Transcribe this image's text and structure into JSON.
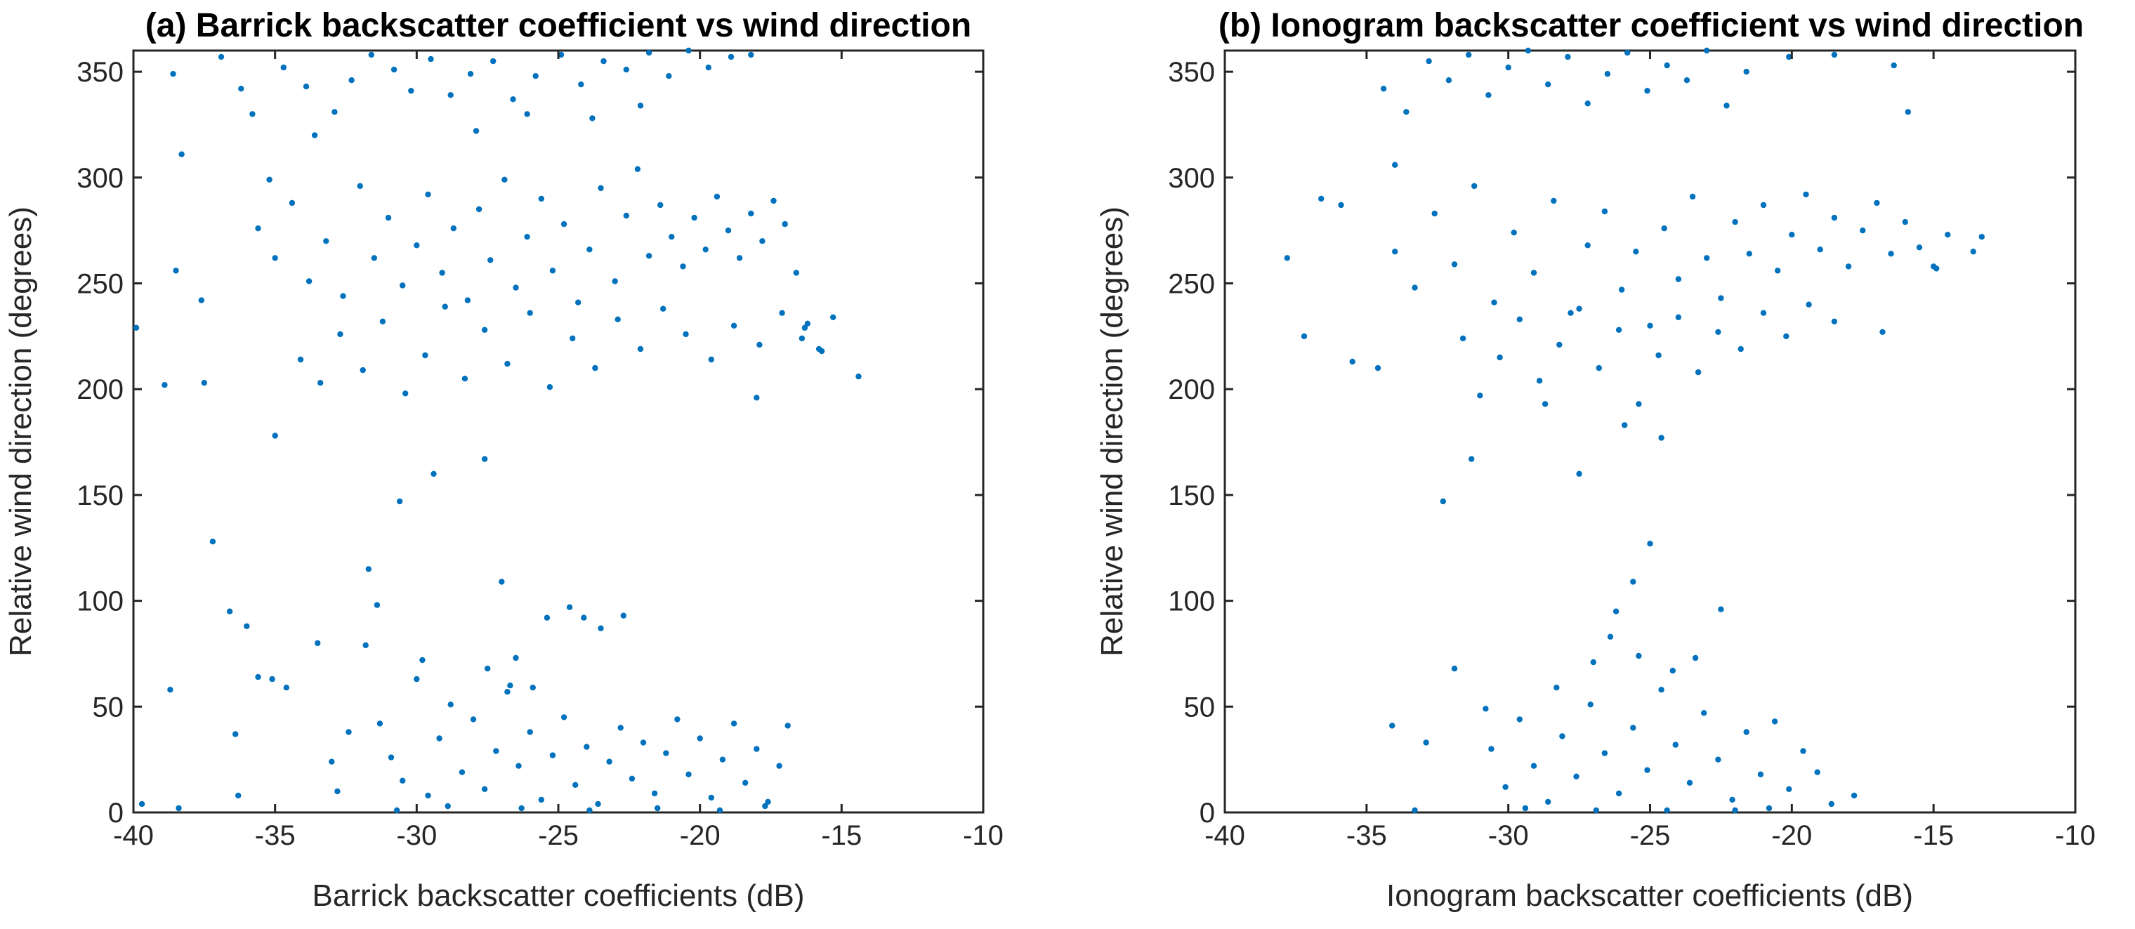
{
  "colors": {
    "marker": "#0072BD",
    "axis": "#262626",
    "text": "#000000"
  },
  "chart_data": [
    {
      "type": "scatter",
      "title": "(a) Barrick backscatter coefficient vs wind direction",
      "xlabel": "Barrick backscatter coefficients (dB)",
      "ylabel": "Relative wind direction (degrees)",
      "xlim": [
        -40,
        -10
      ],
      "ylim": [
        0,
        360
      ],
      "xticks": [
        -40,
        -35,
        -30,
        -25,
        -20,
        -15,
        -10
      ],
      "yticks": [
        0,
        50,
        100,
        150,
        200,
        250,
        300,
        350
      ],
      "xtick_labels": [
        "-40",
        "-35",
        "-30",
        "-25",
        "-20",
        "-15",
        "-10"
      ],
      "ytick_labels": [
        "0",
        "50",
        "100",
        "150",
        "200",
        "250",
        "300",
        "350"
      ],
      "points": [
        [
          -39.9,
          229
        ],
        [
          -38.9,
          202
        ],
        [
          -38.5,
          256
        ],
        [
          -38.3,
          311
        ],
        [
          -38.6,
          349
        ],
        [
          -37.5,
          203
        ],
        [
          -37.2,
          128
        ],
        [
          -37.6,
          242
        ],
        [
          -36.6,
          95
        ],
        [
          -36.4,
          37
        ],
        [
          -36.3,
          8
        ],
        [
          -36.0,
          88
        ],
        [
          -35.6,
          64
        ],
        [
          -35.1,
          63
        ],
        [
          -35.0,
          178
        ],
        [
          -34.6,
          59
        ],
        [
          -33.5,
          80
        ],
        [
          -33.0,
          24
        ],
        [
          -32.8,
          10
        ],
        [
          -32.4,
          38
        ],
        [
          -31.7,
          115
        ],
        [
          -31.4,
          98
        ],
        [
          -30.6,
          147
        ],
        [
          -29.4,
          160
        ],
        [
          -27.6,
          167
        ],
        [
          -27.0,
          109
        ],
        [
          -26.5,
          73
        ],
        [
          -25.4,
          92
        ],
        [
          -24.6,
          97
        ],
        [
          -24.1,
          92
        ],
        [
          -23.5,
          87
        ],
        [
          -22.7,
          93
        ],
        [
          -18.0,
          196
        ],
        [
          -15.3,
          234
        ],
        [
          -14.4,
          206
        ],
        [
          -15.8,
          219
        ],
        [
          -16.3,
          229
        ],
        [
          -39.7,
          4
        ],
        [
          -38.7,
          58
        ],
        [
          -38.4,
          2
        ],
        [
          -36.9,
          357
        ],
        [
          -36.2,
          342
        ],
        [
          -35.8,
          330
        ],
        [
          -35.2,
          299
        ],
        [
          -34.7,
          352
        ],
        [
          -33.9,
          343
        ],
        [
          -33.6,
          320
        ],
        [
          -32.9,
          331
        ],
        [
          -32.3,
          346
        ],
        [
          -31.6,
          358
        ],
        [
          -30.8,
          351
        ],
        [
          -30.2,
          341
        ],
        [
          -29.5,
          356
        ],
        [
          -28.8,
          339
        ],
        [
          -28.1,
          349
        ],
        [
          -27.3,
          355
        ],
        [
          -26.6,
          337
        ],
        [
          -25.8,
          348
        ],
        [
          -24.9,
          358
        ],
        [
          -24.2,
          344
        ],
        [
          -23.4,
          355
        ],
        [
          -22.6,
          351
        ],
        [
          -21.8,
          359
        ],
        [
          -21.1,
          348
        ],
        [
          -20.4,
          360
        ],
        [
          -19.7,
          352
        ],
        [
          -18.9,
          357
        ],
        [
          -18.2,
          358
        ],
        [
          -27.9,
          322
        ],
        [
          -26.1,
          330
        ],
        [
          -23.8,
          328
        ],
        [
          -22.1,
          334
        ],
        [
          -35.6,
          276
        ],
        [
          -35.0,
          262
        ],
        [
          -34.4,
          288
        ],
        [
          -33.8,
          251
        ],
        [
          -33.2,
          270
        ],
        [
          -32.6,
          244
        ],
        [
          -32.0,
          296
        ],
        [
          -31.5,
          262
        ],
        [
          -31.0,
          281
        ],
        [
          -30.5,
          249
        ],
        [
          -30.0,
          268
        ],
        [
          -29.6,
          292
        ],
        [
          -29.1,
          255
        ],
        [
          -28.7,
          276
        ],
        [
          -28.2,
          242
        ],
        [
          -27.8,
          285
        ],
        [
          -27.4,
          261
        ],
        [
          -26.9,
          299
        ],
        [
          -26.5,
          248
        ],
        [
          -26.1,
          272
        ],
        [
          -25.6,
          290
        ],
        [
          -25.2,
          256
        ],
        [
          -24.8,
          278
        ],
        [
          -24.3,
          241
        ],
        [
          -23.9,
          266
        ],
        [
          -23.5,
          295
        ],
        [
          -23.0,
          251
        ],
        [
          -22.6,
          282
        ],
        [
          -22.2,
          304
        ],
        [
          -21.8,
          263
        ],
        [
          -21.4,
          287
        ],
        [
          -21.0,
          272
        ],
        [
          -20.6,
          258
        ],
        [
          -20.2,
          281
        ],
        [
          -19.8,
          266
        ],
        [
          -19.4,
          291
        ],
        [
          -19.0,
          275
        ],
        [
          -18.6,
          262
        ],
        [
          -18.2,
          283
        ],
        [
          -17.8,
          270
        ],
        [
          -17.4,
          289
        ],
        [
          -17.0,
          278
        ],
        [
          -16.6,
          255
        ],
        [
          -16.2,
          231
        ],
        [
          -34.1,
          214
        ],
        [
          -33.4,
          203
        ],
        [
          -32.7,
          226
        ],
        [
          -31.9,
          209
        ],
        [
          -31.2,
          232
        ],
        [
          -30.4,
          198
        ],
        [
          -29.7,
          216
        ],
        [
          -29.0,
          239
        ],
        [
          -28.3,
          205
        ],
        [
          -27.6,
          228
        ],
        [
          -26.8,
          212
        ],
        [
          -26.0,
          236
        ],
        [
          -25.3,
          201
        ],
        [
          -24.5,
          224
        ],
        [
          -23.7,
          210
        ],
        [
          -22.9,
          233
        ],
        [
          -22.1,
          219
        ],
        [
          -21.3,
          238
        ],
        [
          -20.5,
          226
        ],
        [
          -19.6,
          214
        ],
        [
          -18.8,
          230
        ],
        [
          -17.9,
          221
        ],
        [
          -17.1,
          236
        ],
        [
          -16.4,
          224
        ],
        [
          -15.7,
          218
        ],
        [
          -31.3,
          42
        ],
        [
          -30.9,
          26
        ],
        [
          -30.5,
          15
        ],
        [
          -30.0,
          63
        ],
        [
          -29.6,
          8
        ],
        [
          -29.2,
          35
        ],
        [
          -28.8,
          51
        ],
        [
          -28.4,
          19
        ],
        [
          -28.0,
          44
        ],
        [
          -27.6,
          11
        ],
        [
          -27.2,
          29
        ],
        [
          -26.8,
          57
        ],
        [
          -26.4,
          22
        ],
        [
          -26.0,
          38
        ],
        [
          -25.6,
          6
        ],
        [
          -25.2,
          27
        ],
        [
          -24.8,
          45
        ],
        [
          -24.4,
          13
        ],
        [
          -24.0,
          31
        ],
        [
          -23.6,
          4
        ],
        [
          -23.2,
          24
        ],
        [
          -22.8,
          40
        ],
        [
          -22.4,
          16
        ],
        [
          -22.0,
          33
        ],
        [
          -21.6,
          9
        ],
        [
          -21.2,
          28
        ],
        [
          -20.8,
          44
        ],
        [
          -20.4,
          18
        ],
        [
          -20.0,
          35
        ],
        [
          -19.6,
          7
        ],
        [
          -19.2,
          25
        ],
        [
          -18.8,
          42
        ],
        [
          -18.4,
          14
        ],
        [
          -18.0,
          30
        ],
        [
          -17.6,
          5
        ],
        [
          -17.2,
          22
        ],
        [
          -16.9,
          41
        ],
        [
          -30.7,
          1
        ],
        [
          -28.9,
          3
        ],
        [
          -26.3,
          2
        ],
        [
          -23.9,
          1
        ],
        [
          -21.5,
          2
        ],
        [
          -19.3,
          1
        ],
        [
          -17.7,
          3
        ],
        [
          -27.5,
          68
        ],
        [
          -26.7,
          60
        ],
        [
          -25.9,
          59
        ],
        [
          -29.8,
          72
        ],
        [
          -31.8,
          79
        ]
      ]
    },
    {
      "type": "scatter",
      "title": "(b) Ionogram backscatter coefficient vs wind direction",
      "xlabel": "Ionogram backscatter coefficients (dB)",
      "ylabel": "Relative wind direction (degrees)",
      "xlim": [
        -40,
        -10
      ],
      "ylim": [
        0,
        360
      ],
      "xticks": [
        -40,
        -35,
        -30,
        -25,
        -20,
        -15,
        -10
      ],
      "yticks": [
        0,
        50,
        100,
        150,
        200,
        250,
        300,
        350
      ],
      "xtick_labels": [
        "-40",
        "-35",
        "-30",
        "-25",
        "-20",
        "-15",
        "-10"
      ],
      "ytick_labels": [
        "0",
        "50",
        "100",
        "150",
        "200",
        "250",
        "300",
        "350"
      ],
      "points": [
        [
          -37.8,
          262
        ],
        [
          -37.2,
          225
        ],
        [
          -36.6,
          290
        ],
        [
          -35.9,
          287
        ],
        [
          -35.5,
          213
        ],
        [
          -34.6,
          210
        ],
        [
          -34.0,
          306
        ],
        [
          -32.3,
          147
        ],
        [
          -31.3,
          167
        ],
        [
          -27.5,
          160
        ],
        [
          -25.0,
          127
        ],
        [
          -25.6,
          109
        ],
        [
          -26.2,
          95
        ],
        [
          -22.5,
          96
        ],
        [
          -16.8,
          227
        ],
        [
          -13.6,
          265
        ],
        [
          -13.3,
          272
        ],
        [
          -14.9,
          257
        ],
        [
          -32.9,
          33
        ],
        [
          -34.1,
          41
        ],
        [
          -33.3,
          1
        ],
        [
          -31.9,
          68
        ],
        [
          -17.8,
          8
        ],
        [
          -22.0,
          1
        ],
        [
          -34.4,
          342
        ],
        [
          -33.6,
          331
        ],
        [
          -32.8,
          355
        ],
        [
          -32.1,
          346
        ],
        [
          -31.4,
          358
        ],
        [
          -30.7,
          339
        ],
        [
          -30.0,
          352
        ],
        [
          -29.3,
          360
        ],
        [
          -28.6,
          344
        ],
        [
          -27.9,
          357
        ],
        [
          -27.2,
          335
        ],
        [
          -26.5,
          349
        ],
        [
          -25.8,
          359
        ],
        [
          -25.1,
          341
        ],
        [
          -24.4,
          353
        ],
        [
          -23.7,
          346
        ],
        [
          -23.0,
          360
        ],
        [
          -22.3,
          334
        ],
        [
          -21.6,
          350
        ],
        [
          -20.1,
          357
        ],
        [
          -18.5,
          358
        ],
        [
          -16.4,
          353
        ],
        [
          -15.9,
          331
        ],
        [
          -34.0,
          265
        ],
        [
          -33.3,
          248
        ],
        [
          -32.6,
          283
        ],
        [
          -31.9,
          259
        ],
        [
          -31.2,
          296
        ],
        [
          -30.5,
          241
        ],
        [
          -29.8,
          274
        ],
        [
          -29.1,
          255
        ],
        [
          -28.4,
          289
        ],
        [
          -27.8,
          236
        ],
        [
          -27.2,
          268
        ],
        [
          -26.6,
          284
        ],
        [
          -26.0,
          247
        ],
        [
          -25.5,
          265
        ],
        [
          -25.0,
          230
        ],
        [
          -24.5,
          276
        ],
        [
          -24.0,
          252
        ],
        [
          -23.5,
          291
        ],
        [
          -23.0,
          262
        ],
        [
          -22.5,
          243
        ],
        [
          -22.0,
          279
        ],
        [
          -21.5,
          264
        ],
        [
          -21.0,
          287
        ],
        [
          -20.5,
          256
        ],
        [
          -20.0,
          273
        ],
        [
          -19.5,
          292
        ],
        [
          -19.0,
          266
        ],
        [
          -18.5,
          281
        ],
        [
          -18.0,
          258
        ],
        [
          -17.5,
          275
        ],
        [
          -17.0,
          288
        ],
        [
          -16.5,
          264
        ],
        [
          -16.0,
          279
        ],
        [
          -15.5,
          267
        ],
        [
          -15.0,
          258
        ],
        [
          -14.5,
          273
        ],
        [
          -31.6,
          224
        ],
        [
          -31.0,
          197
        ],
        [
          -30.3,
          215
        ],
        [
          -29.6,
          233
        ],
        [
          -28.9,
          204
        ],
        [
          -28.2,
          221
        ],
        [
          -27.5,
          238
        ],
        [
          -26.8,
          210
        ],
        [
          -26.1,
          228
        ],
        [
          -25.4,
          193
        ],
        [
          -24.7,
          216
        ],
        [
          -24.0,
          234
        ],
        [
          -23.3,
          208
        ],
        [
          -22.6,
          227
        ],
        [
          -21.8,
          219
        ],
        [
          -21.0,
          236
        ],
        [
          -20.2,
          225
        ],
        [
          -19.4,
          240
        ],
        [
          -18.5,
          232
        ],
        [
          -25.9,
          183
        ],
        [
          -24.6,
          177
        ],
        [
          -28.7,
          193
        ],
        [
          -30.6,
          30
        ],
        [
          -30.1,
          12
        ],
        [
          -29.6,
          44
        ],
        [
          -29.1,
          22
        ],
        [
          -28.6,
          5
        ],
        [
          -28.1,
          36
        ],
        [
          -27.6,
          17
        ],
        [
          -27.1,
          51
        ],
        [
          -26.6,
          28
        ],
        [
          -26.1,
          9
        ],
        [
          -25.6,
          40
        ],
        [
          -25.1,
          20
        ],
        [
          -24.6,
          58
        ],
        [
          -24.1,
          32
        ],
        [
          -23.6,
          14
        ],
        [
          -23.1,
          47
        ],
        [
          -22.6,
          25
        ],
        [
          -22.1,
          6
        ],
        [
          -21.6,
          38
        ],
        [
          -21.1,
          18
        ],
        [
          -20.6,
          43
        ],
        [
          -20.1,
          11
        ],
        [
          -19.6,
          29
        ],
        [
          -19.1,
          19
        ],
        [
          -18.6,
          4
        ],
        [
          -27.0,
          71
        ],
        [
          -26.4,
          83
        ],
        [
          -25.4,
          74
        ],
        [
          -24.2,
          67
        ],
        [
          -23.4,
          73
        ],
        [
          -28.3,
          59
        ],
        [
          -30.8,
          49
        ],
        [
          -29.4,
          2
        ],
        [
          -26.9,
          1
        ],
        [
          -24.4,
          1
        ],
        [
          -20.8,
          2
        ]
      ]
    }
  ]
}
